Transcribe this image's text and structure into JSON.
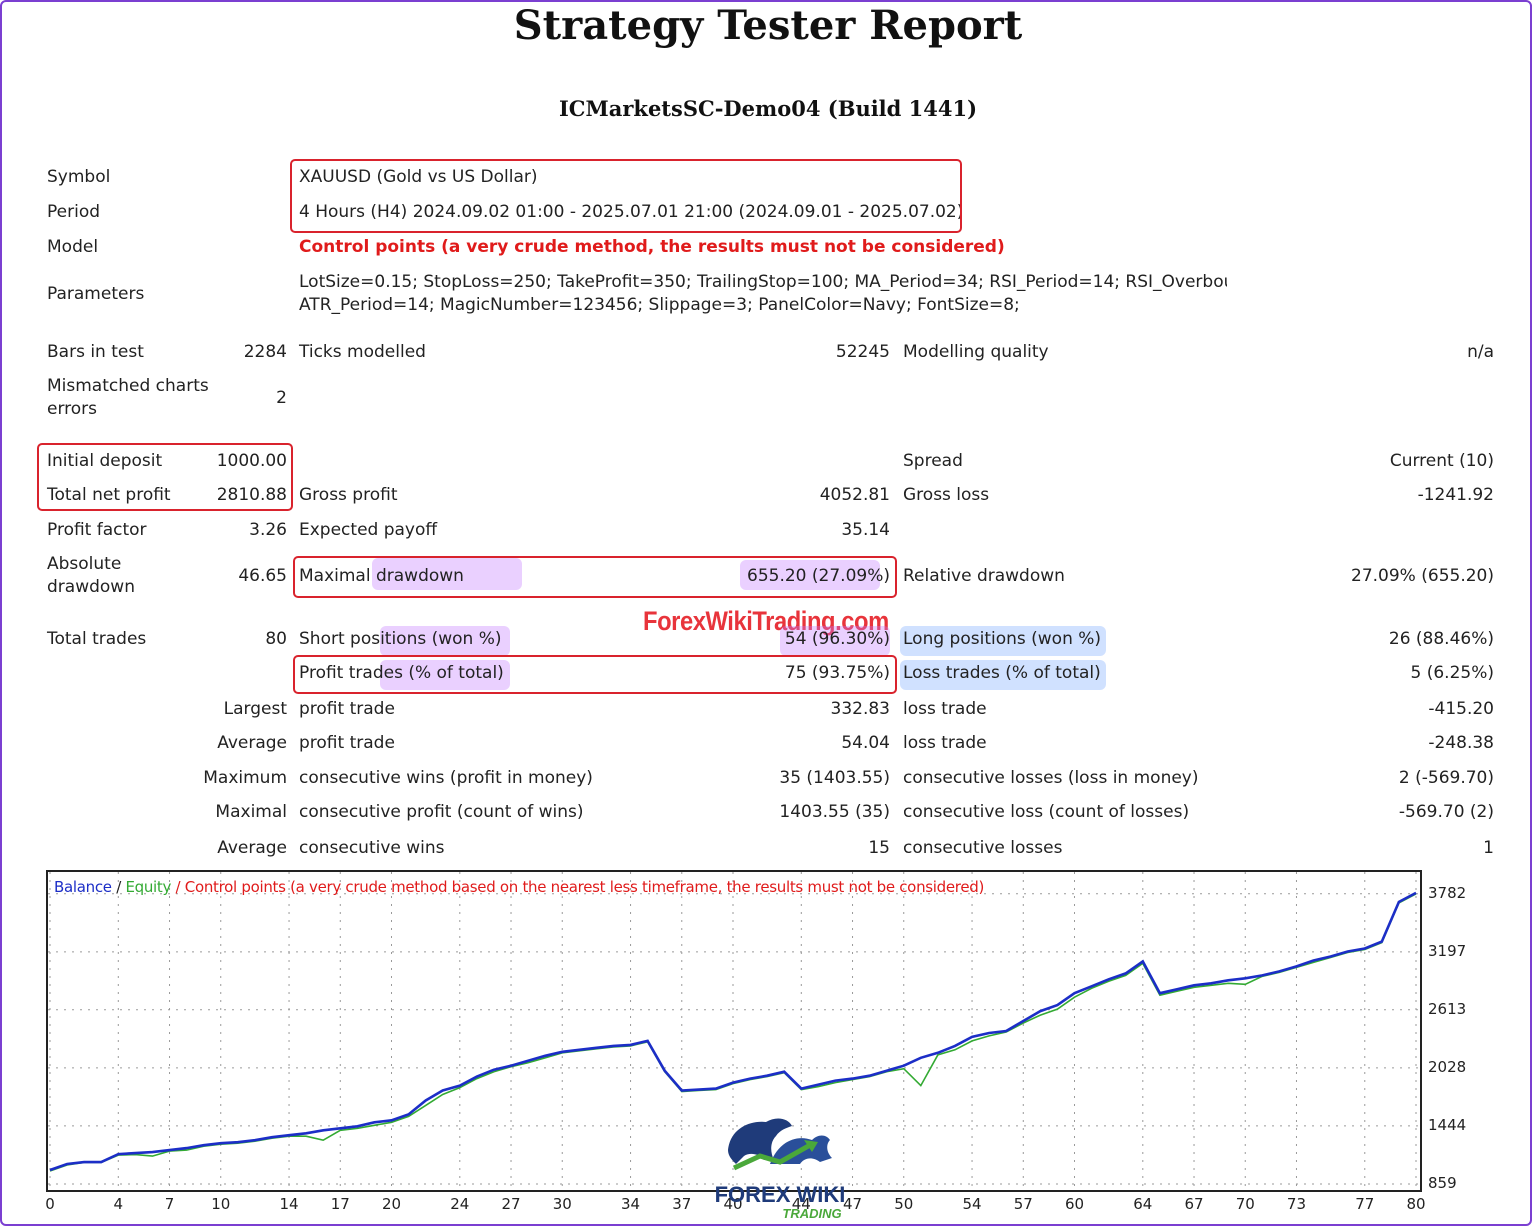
{
  "title": "Strategy Tester Report",
  "server": "ICMarketsSC-Demo04 (Build 1441)",
  "watermark": "ForexWikiTrading.com",
  "logo_text": [
    "FOREX WIKI",
    "TRADING"
  ],
  "settings": {
    "symbol_label": "Symbol",
    "symbol": "XAUUSD (Gold vs US Dollar)",
    "period_label": "Period",
    "period": "4 Hours (H4) 2024.09.02 01:00 - 2025.07.01 21:00 (2024.09.01 - 2025.07.02)",
    "model_label": "Model",
    "model": "Control points (a very crude method, the results must not be considered)",
    "parameters_label": "Parameters",
    "parameters_line1": "LotSize=0.15; StopLoss=250; TakeProfit=350; TrailingStop=100; MA_Period=34; RSI_Period=14; RSI_Overbou",
    "parameters_line2": "ATR_Period=14; MagicNumber=123456; Slippage=3; PanelColor=Navy; FontSize=8;"
  },
  "stats": {
    "bars_label": "Bars in test",
    "bars": "2284",
    "ticks_label": "Ticks modelled",
    "ticks": "52245",
    "quality_label": "Modelling quality",
    "quality": "n/a",
    "mismatch_label1": "Mismatched charts",
    "mismatch_label2": "errors",
    "mismatch": "2",
    "deposit_label": "Initial deposit",
    "deposit": "1000.00",
    "spread_label": "Spread",
    "spread": "Current (10)",
    "net_label": "Total net profit",
    "net": "2810.88",
    "gross_profit_label": "Gross profit",
    "gross_profit": "4052.81",
    "gross_loss_label": "Gross loss",
    "gross_loss": "-1241.92",
    "pf_label": "Profit factor",
    "pf": "3.26",
    "payoff_label": "Expected payoff",
    "payoff": "35.14",
    "abs_dd_label1": "Absolute",
    "abs_dd_label2": "drawdown",
    "abs_dd": "46.65",
    "max_dd_label": "Maximal drawdown",
    "max_dd": "655.20 (27.09%)",
    "rel_dd_label": "Relative drawdown",
    "rel_dd": "27.09% (655.20)",
    "trades_label": "Total trades",
    "trades": "80",
    "short_label": "Short positions (won %)",
    "short": "54 (96.30%)",
    "long_label": "Long positions (won %)",
    "long": "26 (88.46%)",
    "profit_trades_label": "Profit trades (% of total)",
    "profit_trades": "75 (93.75%)",
    "loss_trades_label": "Loss trades (% of total)",
    "loss_trades": "5 (6.25%)",
    "largest_label": "Largest",
    "largest_profit_label": "profit trade",
    "largest_profit": "332.83",
    "largest_loss_label": "loss trade",
    "largest_loss": "-415.20",
    "average_label": "Average",
    "avg_profit_label": "profit trade",
    "avg_profit": "54.04",
    "avg_loss_label": "loss trade",
    "avg_loss": "-248.38",
    "maximum_label": "Maximum",
    "max_wins_label": "consecutive wins (profit in money)",
    "max_wins": "35 (1403.55)",
    "max_losses_label": "consecutive losses (loss in money)",
    "max_losses": "2 (-569.70)",
    "maximal_label": "Maximal",
    "maximal_profit_label": "consecutive profit (count of wins)",
    "maximal_profit": "1403.55 (35)",
    "maximal_loss_label": "consecutive loss (count of losses)",
    "maximal_loss": "-569.70 (2)",
    "average2_label": "Average",
    "avg_wins_label": "consecutive wins",
    "avg_wins": "15",
    "avg_losses_label": "consecutive losses",
    "avg_losses": "1"
  },
  "colors": {
    "balance": "#1c2ec7",
    "equity": "#33aa33",
    "highlight_box": "#d9232d",
    "frame": "#7b3fd1"
  },
  "chart_data": {
    "type": "line",
    "legend": {
      "balance": "Balance",
      "sep": " / ",
      "equity": "Equity",
      "note": " / Control points (a very crude method based on the nearest less timeframe, the results must not be considered)"
    },
    "ylim": [
      859,
      3900
    ],
    "xlim": [
      0,
      80
    ],
    "y_ticks": [
      859,
      1444,
      2028,
      2613,
      3197,
      3782
    ],
    "x_ticks": [
      0,
      4,
      7,
      10,
      14,
      17,
      20,
      24,
      27,
      30,
      34,
      37,
      40,
      44,
      47,
      50,
      54,
      57,
      60,
      64,
      67,
      70,
      73,
      77,
      80
    ],
    "x": [
      0,
      1,
      2,
      3,
      4,
      5,
      6,
      7,
      8,
      9,
      10,
      11,
      12,
      13,
      14,
      15,
      16,
      17,
      18,
      19,
      20,
      21,
      22,
      23,
      24,
      25,
      26,
      27,
      28,
      29,
      30,
      31,
      32,
      33,
      34,
      35,
      36,
      37,
      38,
      39,
      40,
      41,
      42,
      43,
      44,
      45,
      46,
      47,
      48,
      49,
      50,
      51,
      52,
      53,
      54,
      55,
      56,
      57,
      58,
      59,
      60,
      61,
      62,
      63,
      64,
      65,
      66,
      67,
      68,
      69,
      70,
      71,
      72,
      73,
      74,
      75,
      76,
      77,
      78,
      79,
      80
    ],
    "series": [
      {
        "name": "Balance",
        "values": [
          1000,
          1060,
          1080,
          1080,
          1160,
          1170,
          1180,
          1200,
          1220,
          1250,
          1270,
          1280,
          1300,
          1330,
          1350,
          1370,
          1400,
          1420,
          1440,
          1480,
          1500,
          1560,
          1700,
          1800,
          1850,
          1940,
          2010,
          2050,
          2100,
          2150,
          2190,
          2210,
          2230,
          2250,
          2260,
          2300,
          2000,
          1800,
          1810,
          1820,
          1880,
          1920,
          1950,
          1990,
          1820,
          1860,
          1900,
          1920,
          1950,
          2000,
          2050,
          2130,
          2180,
          2250,
          2340,
          2380,
          2400,
          2500,
          2600,
          2660,
          2780,
          2850,
          2920,
          2980,
          3100,
          2780,
          2820,
          2860,
          2880,
          2910,
          2930,
          2960,
          3000,
          3050,
          3110,
          3150,
          3200,
          3230,
          3300,
          3700,
          3790
        ],
        "color": "#1c2ec7"
      },
      {
        "name": "Equity",
        "values": [
          990,
          1050,
          1075,
          1075,
          1150,
          1155,
          1140,
          1190,
          1200,
          1240,
          1260,
          1270,
          1290,
          1320,
          1340,
          1340,
          1300,
          1400,
          1420,
          1450,
          1480,
          1540,
          1650,
          1760,
          1830,
          1920,
          1990,
          2040,
          2080,
          2130,
          2180,
          2200,
          2220,
          2240,
          2250,
          2290,
          1990,
          1790,
          1800,
          1810,
          1870,
          1910,
          1940,
          1980,
          1810,
          1840,
          1880,
          1910,
          1940,
          1990,
          2020,
          1850,
          2160,
          2210,
          2300,
          2350,
          2390,
          2480,
          2560,
          2620,
          2740,
          2830,
          2900,
          2960,
          3080,
          2760,
          2800,
          2840,
          2860,
          2880,
          2870,
          2950,
          2990,
          3040,
          3090,
          3140,
          3190,
          3220,
          3290,
          3690,
          3780
        ],
        "color": "#33aa33"
      }
    ]
  }
}
